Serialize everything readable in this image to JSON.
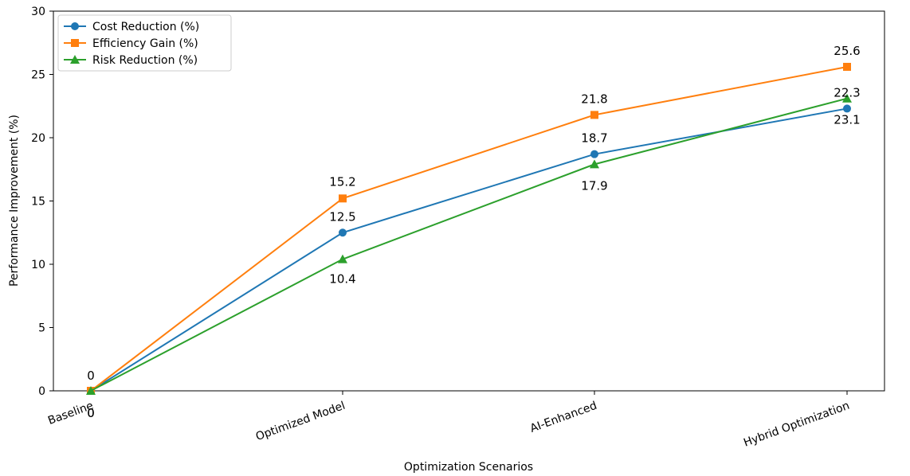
{
  "chart_data": {
    "type": "line",
    "title": "",
    "xlabel": "Optimization Scenarios",
    "ylabel": "Performance Improvement (%)",
    "categories": [
      "Baseline",
      "Optimized Model",
      "AI-Enhanced",
      "Hybrid Optimization"
    ],
    "ylim": [
      0,
      30
    ],
    "yticks": [
      0,
      5,
      10,
      15,
      20,
      25,
      30
    ],
    "grid": false,
    "legend_position": "top-left",
    "series": [
      {
        "name": "Cost Reduction (%)",
        "values": [
          0,
          12.5,
          18.7,
          22.3
        ],
        "color": "#1f77b4",
        "marker": "circle"
      },
      {
        "name": "Efficiency Gain (%)",
        "values": [
          0,
          15.2,
          21.8,
          25.6
        ],
        "color": "#ff7f0e",
        "marker": "square"
      },
      {
        "name": "Risk Reduction (%)",
        "values": [
          0,
          10.4,
          17.9,
          23.1
        ],
        "color": "#2ca02c",
        "marker": "triangle"
      }
    ],
    "data_labels": [
      {
        "series": 1,
        "index": 0,
        "text": "0"
      },
      {
        "series": 0,
        "index": 0,
        "text": "0"
      },
      {
        "series": 2,
        "index": 0,
        "text": "0"
      },
      {
        "series": 1,
        "index": 1,
        "text": "15.2"
      },
      {
        "series": 0,
        "index": 1,
        "text": "12.5"
      },
      {
        "series": 2,
        "index": 1,
        "text": "10.4"
      },
      {
        "series": 1,
        "index": 2,
        "text": "21.8"
      },
      {
        "series": 0,
        "index": 2,
        "text": "18.7"
      },
      {
        "series": 2,
        "index": 2,
        "text": "17.9"
      },
      {
        "series": 1,
        "index": 3,
        "text": "25.6"
      },
      {
        "series": 0,
        "index": 3,
        "text": "22.3"
      },
      {
        "series": 2,
        "index": 3,
        "text": "23.1"
      }
    ]
  }
}
